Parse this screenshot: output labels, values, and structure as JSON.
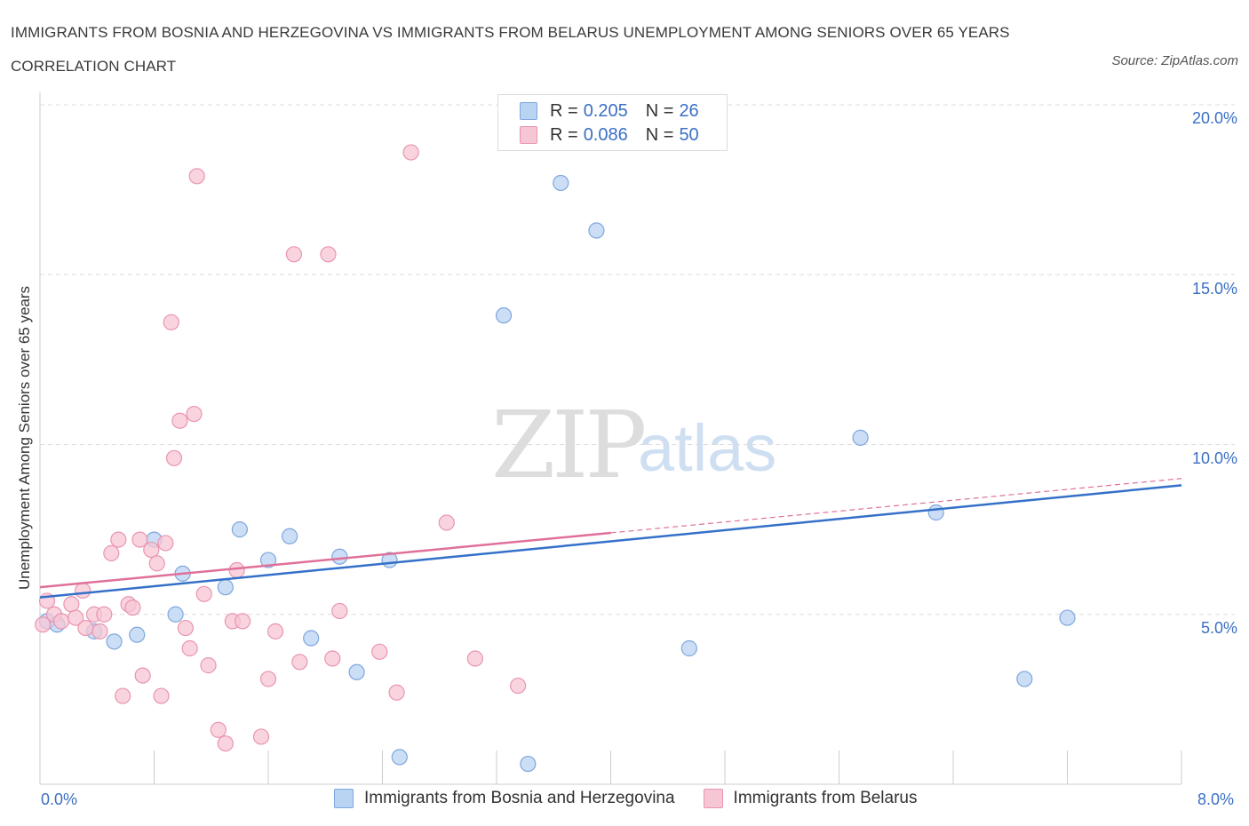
{
  "title": "IMMIGRANTS FROM BOSNIA AND HERZEGOVINA VS IMMIGRANTS FROM BELARUS UNEMPLOYMENT AMONG SENIORS OVER 65 YEARS CORRELATION CHART",
  "source": "Source: ZipAtlas.com",
  "watermark": {
    "zip": "ZIP",
    "atlas": "atlas"
  },
  "legend": {
    "r_label": "R =",
    "n_label": "N =",
    "rows": [
      {
        "r": "0.205",
        "n": "26"
      },
      {
        "r": "0.086",
        "n": "50"
      }
    ]
  },
  "colors": {
    "blue_fill": "#b9d3f3",
    "blue_stroke": "#7ea7dd",
    "blue_line": "#3470c8",
    "pink_fill": "#f7c6d4",
    "pink_stroke": "#e995b0",
    "pink_line": "#e0709a",
    "tick_text": "#3a6fc4",
    "grid": "#dcdcdc"
  },
  "chart_data": {
    "type": "scatter",
    "title": "IMMIGRANTS FROM BOSNIA AND HERZEGOVINA VS IMMIGRANTS FROM BELARUS UNEMPLOYMENT AMONG SENIORS OVER 65 YEARS CORRELATION CHART",
    "xlabel": "",
    "ylabel": "Unemployment Among Seniors over 65 years",
    "xlim": [
      0,
      8
    ],
    "ylim": [
      0,
      20
    ],
    "x_tick_labels": [
      "0.0%",
      "8.0%"
    ],
    "y_ticks": [
      5,
      10,
      15,
      20
    ],
    "y_tick_labels": [
      "5.0%",
      "10.0%",
      "15.0%",
      "20.0%"
    ],
    "grid": "horizontal dashed",
    "legend_position": "top-center",
    "series": [
      {
        "name": "Immigrants from Bosnia and Herzegovina",
        "color": "blue",
        "R": 0.205,
        "N": 26,
        "points": [
          [
            0.05,
            4.8
          ],
          [
            0.12,
            4.7
          ],
          [
            0.38,
            4.5
          ],
          [
            0.52,
            4.2
          ],
          [
            0.68,
            4.4
          ],
          [
            0.8,
            7.2
          ],
          [
            0.95,
            5.0
          ],
          [
            1.0,
            6.2
          ],
          [
            1.3,
            5.8
          ],
          [
            1.4,
            7.5
          ],
          [
            1.6,
            6.6
          ],
          [
            1.75,
            7.3
          ],
          [
            1.9,
            4.3
          ],
          [
            2.1,
            6.7
          ],
          [
            2.22,
            3.3
          ],
          [
            2.45,
            6.6
          ],
          [
            2.52,
            0.8
          ],
          [
            3.25,
            13.8
          ],
          [
            3.42,
            0.6
          ],
          [
            3.65,
            17.7
          ],
          [
            3.9,
            16.3
          ],
          [
            4.55,
            4.0
          ],
          [
            5.75,
            10.2
          ],
          [
            6.28,
            8.0
          ],
          [
            6.9,
            3.1
          ],
          [
            7.2,
            4.9
          ]
        ],
        "trend": {
          "x": [
            0,
            8
          ],
          "y": [
            5.5,
            8.8
          ]
        }
      },
      {
        "name": "Immigrants from Belarus",
        "color": "pink",
        "R": 0.086,
        "N": 50,
        "points": [
          [
            0.02,
            4.7
          ],
          [
            0.05,
            5.4
          ],
          [
            0.1,
            5.0
          ],
          [
            0.15,
            4.8
          ],
          [
            0.22,
            5.3
          ],
          [
            0.25,
            4.9
          ],
          [
            0.3,
            5.7
          ],
          [
            0.32,
            4.6
          ],
          [
            0.38,
            5.0
          ],
          [
            0.42,
            4.5
          ],
          [
            0.45,
            5.0
          ],
          [
            0.5,
            6.8
          ],
          [
            0.55,
            7.2
          ],
          [
            0.58,
            2.6
          ],
          [
            0.62,
            5.3
          ],
          [
            0.65,
            5.2
          ],
          [
            0.7,
            7.2
          ],
          [
            0.72,
            3.2
          ],
          [
            0.78,
            6.9
          ],
          [
            0.82,
            6.5
          ],
          [
            0.85,
            2.6
          ],
          [
            0.88,
            7.1
          ],
          [
            0.92,
            13.6
          ],
          [
            0.94,
            9.6
          ],
          [
            0.98,
            10.7
          ],
          [
            1.02,
            4.6
          ],
          [
            1.05,
            4.0
          ],
          [
            1.08,
            10.9
          ],
          [
            1.1,
            17.9
          ],
          [
            1.15,
            5.6
          ],
          [
            1.18,
            3.5
          ],
          [
            1.25,
            1.6
          ],
          [
            1.3,
            1.2
          ],
          [
            1.35,
            4.8
          ],
          [
            1.38,
            6.3
          ],
          [
            1.42,
            4.8
          ],
          [
            1.55,
            1.4
          ],
          [
            1.6,
            3.1
          ],
          [
            1.65,
            4.5
          ],
          [
            1.78,
            15.6
          ],
          [
            1.82,
            3.6
          ],
          [
            2.02,
            15.6
          ],
          [
            2.05,
            3.7
          ],
          [
            2.1,
            5.1
          ],
          [
            2.38,
            3.9
          ],
          [
            2.5,
            2.7
          ],
          [
            2.6,
            18.6
          ],
          [
            2.85,
            7.7
          ],
          [
            3.05,
            3.7
          ],
          [
            3.35,
            2.9
          ]
        ],
        "trend": {
          "x": [
            0,
            4
          ],
          "y": [
            5.8,
            7.4
          ]
        },
        "trend_extension": {
          "x": [
            4,
            8
          ],
          "y": [
            7.4,
            9.0
          ]
        }
      }
    ]
  },
  "axis": {
    "y_label": "Unemployment Among Seniors over 65 years",
    "x_min_label": "0.0%",
    "x_max_label": "8.0%",
    "y_ticks": [
      "20.0%",
      "15.0%",
      "10.0%",
      "5.0%"
    ]
  },
  "bottom_legend": [
    {
      "label": "Immigrants from Bosnia and Herzegovina"
    },
    {
      "label": "Immigrants from Belarus"
    }
  ]
}
